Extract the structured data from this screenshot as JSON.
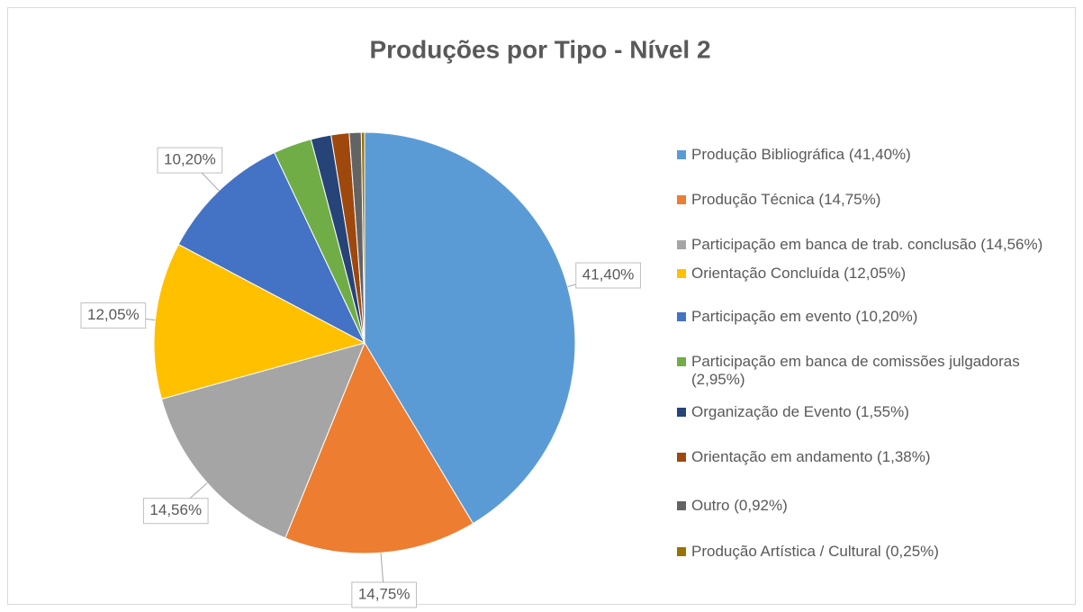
{
  "chart_data": {
    "type": "pie",
    "title": "Produções por Tipo - Nível 2",
    "categories": [
      "Produção Bibliográfica (41,40%)",
      "Produção Técnica (14,75%)",
      "Participação em banca de trab. conclusão (14,56%)",
      "Orientação Concluída (12,05%)",
      "Participação em evento (10,20%)",
      "Participação em banca de comissões julgadoras (2,95%)",
      "Organização de Evento (1,55%)",
      "Orientação em andamento (1,38%)",
      "Outro (0,92%)",
      "Produção Artística / Cultural (0,25%)"
    ],
    "values": [
      41.4,
      14.75,
      14.56,
      12.05,
      10.2,
      2.95,
      1.55,
      1.38,
      0.92,
      0.25
    ],
    "value_labels": [
      "41,40%",
      "14,75%",
      "14,56%",
      "12,05%",
      "10,20%",
      null,
      null,
      null,
      null,
      null
    ],
    "colors": [
      "#5b9bd5",
      "#ed7d31",
      "#a5a5a5",
      "#ffc000",
      "#4472c4",
      "#70ad47",
      "#264478",
      "#9e480e",
      "#636363",
      "#997300"
    ],
    "legend": "right"
  }
}
